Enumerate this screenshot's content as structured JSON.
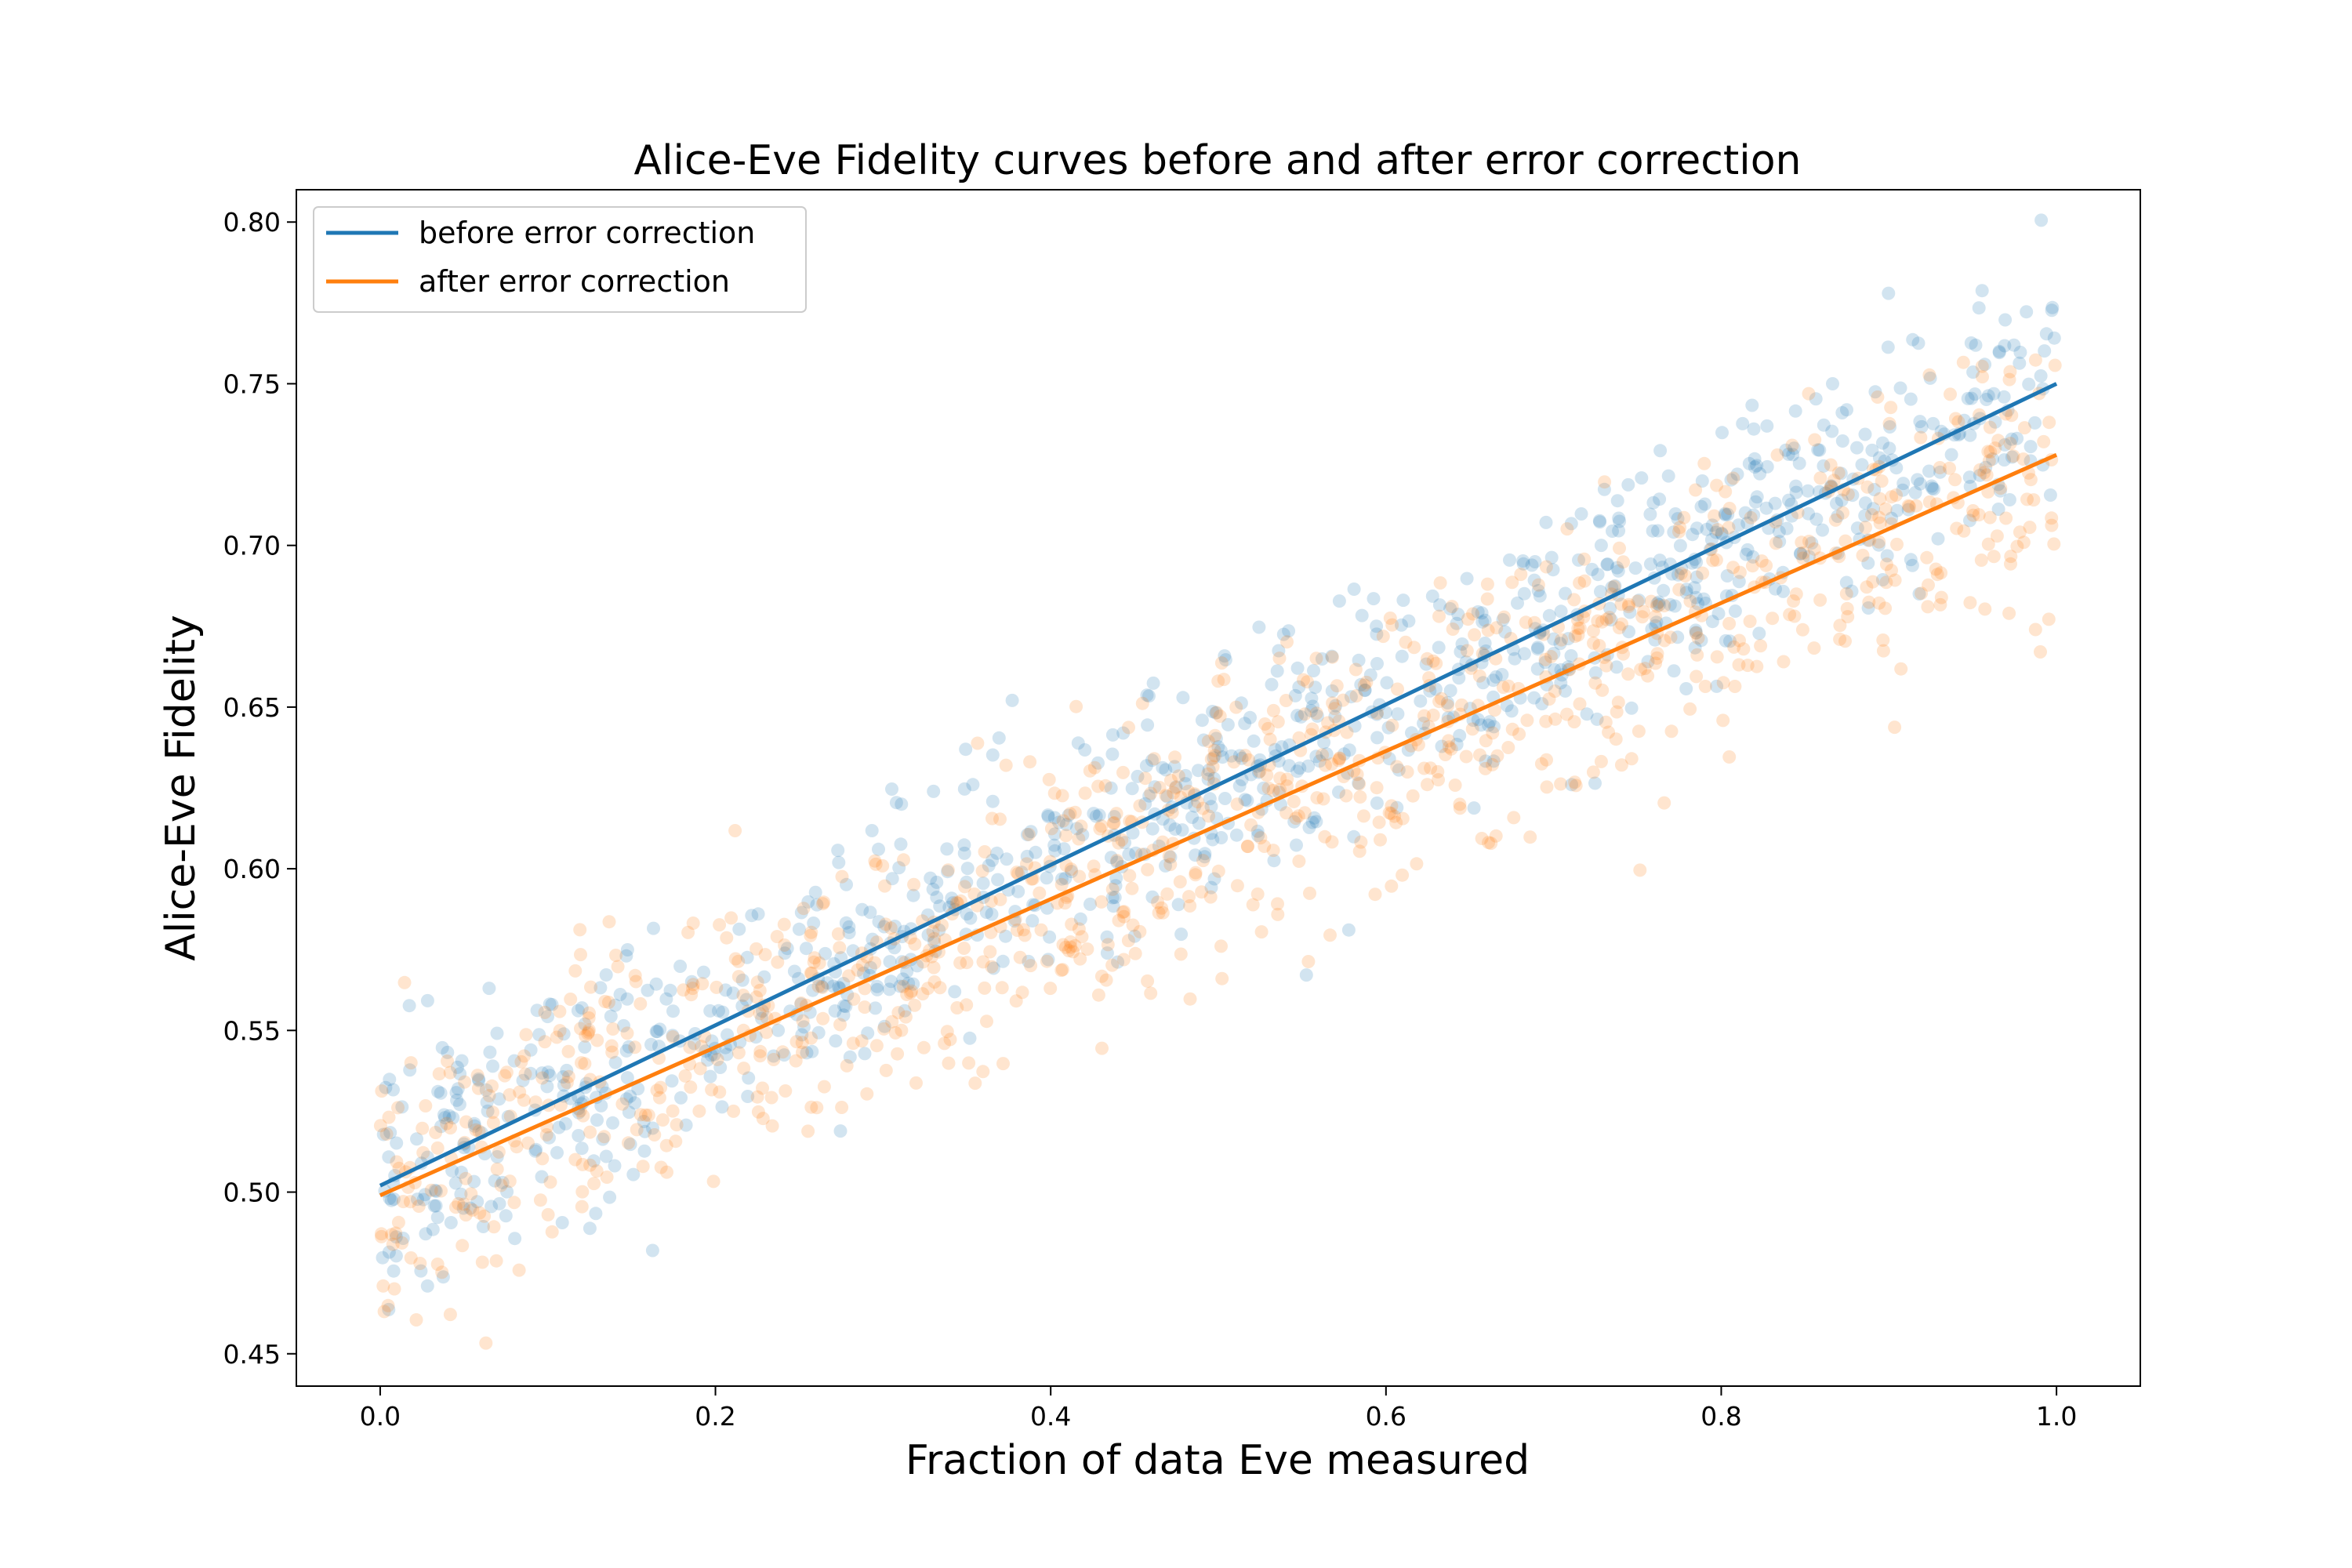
{
  "chart_data": {
    "type": "scatter",
    "title": "Alice-Eve Fidelity curves before and after error correction",
    "xlabel": "Fraction of data Eve measured",
    "ylabel": "Alice-Eve Fidelity",
    "xlim": [
      -0.05,
      1.05
    ],
    "ylim": [
      0.44,
      0.81
    ],
    "xticks": [
      0.0,
      0.2,
      0.4,
      0.6,
      0.8,
      1.0
    ],
    "xtick_labels": [
      "0.0",
      "0.2",
      "0.4",
      "0.6",
      "0.8",
      "1.0"
    ],
    "yticks": [
      0.45,
      0.5,
      0.55,
      0.6,
      0.65,
      0.7,
      0.75,
      0.8
    ],
    "ytick_labels": [
      "0.45",
      "0.50",
      "0.55",
      "0.60",
      "0.65",
      "0.70",
      "0.75",
      "0.80"
    ],
    "grid": false,
    "legend": {
      "position": "top-left"
    },
    "series": [
      {
        "name": "before error correction",
        "color": "#1f77b4",
        "fit": {
          "x": [
            0.0,
            1.0
          ],
          "y": [
            0.502,
            0.75
          ]
        },
        "scatter": {
          "count": 1000,
          "alpha": 0.2,
          "x_range": [
            0.0,
            1.0
          ],
          "approx_y_at_x0": 0.502,
          "approx_y_at_x1": 0.75,
          "approx_std": 0.018
        }
      },
      {
        "name": "after error correction",
        "color": "#ff7f0e",
        "fit": {
          "x": [
            0.0,
            1.0
          ],
          "y": [
            0.499,
            0.728
          ]
        },
        "scatter": {
          "count": 1000,
          "alpha": 0.2,
          "x_range": [
            0.0,
            1.0
          ],
          "approx_y_at_x0": 0.499,
          "approx_y_at_x1": 0.728,
          "approx_std": 0.022
        }
      }
    ]
  }
}
